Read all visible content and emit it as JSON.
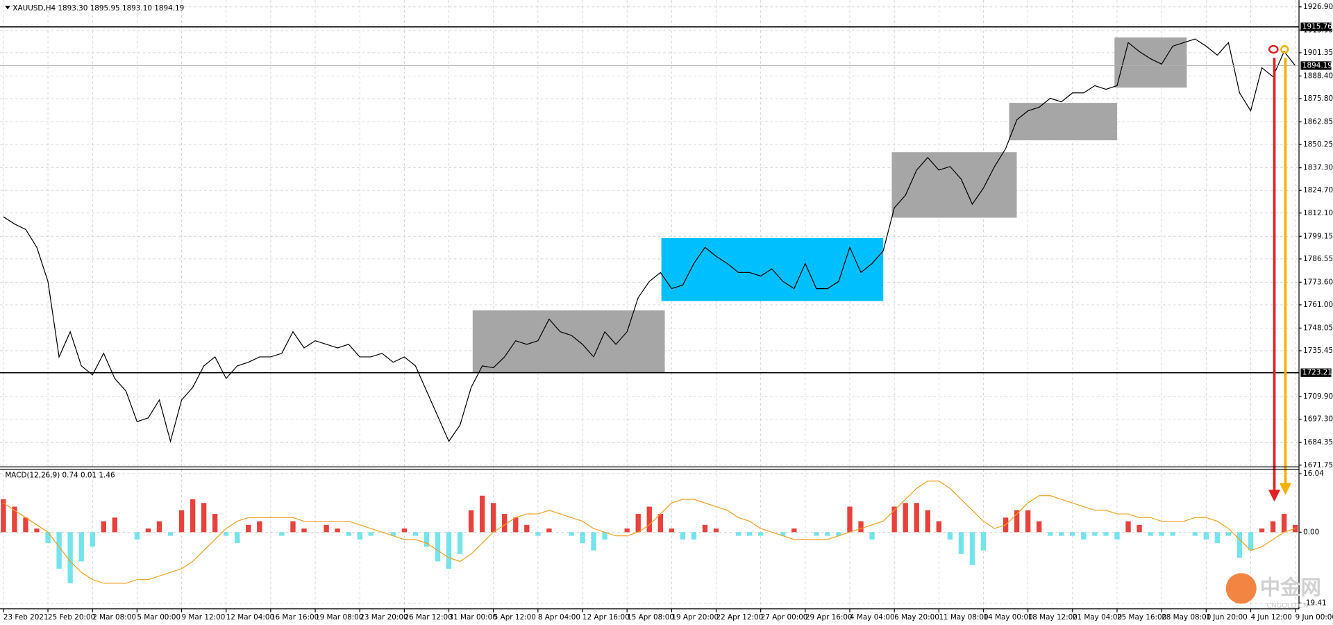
{
  "chart_data": [
    {
      "type": "line",
      "title": "XAUUSD,H4  1893.30 1895.95 1893.10 1894.19",
      "color": "#000000",
      "grid": true,
      "categories": [
        "23 Feb 2021",
        null,
        null,
        null,
        "25 Feb 20:00",
        null,
        null,
        null,
        "2 Mar 08:00",
        null,
        null,
        null,
        "5 Mar 00:00",
        null,
        null,
        null,
        "9 Mar 12:00",
        null,
        null,
        null,
        "12 Mar 04:00",
        null,
        null,
        null,
        "16 Mar 16:00",
        null,
        null,
        null,
        "19 Mar 08:00",
        null,
        null,
        null,
        "23 Mar 20:00",
        null,
        null,
        null,
        "26 Mar 12:00",
        null,
        null,
        null,
        "31 Mar 00:00",
        null,
        null,
        null,
        "5 Apr 12:00",
        null,
        null,
        null,
        "8 Apr 04:00",
        null,
        null,
        null,
        "12 Apr 16:00",
        null,
        null,
        null,
        "15 Apr 08:00",
        null,
        null,
        null,
        "19 Apr 20:00",
        null,
        null,
        null,
        "22 Apr 12:00",
        null,
        null,
        null,
        "27 Apr 00:00",
        null,
        null,
        null,
        "29 Apr 16:00",
        null,
        null,
        null,
        "4 May 04:00",
        null,
        null,
        null,
        "6 May 20:00",
        null,
        null,
        null,
        "11 May 08:00",
        null,
        null,
        null,
        "14 May 00:00",
        null,
        null,
        null,
        "18 May 12:00",
        null,
        null,
        null,
        "21 May 04:00",
        null,
        null,
        null,
        "25 May 16:00",
        null,
        null,
        null,
        "28 May 08:00",
        null,
        null,
        null,
        "1 Jun 20:00",
        null,
        null,
        null,
        "4 Jun 12:00",
        null,
        null,
        null,
        "9 Jun 00:00"
      ],
      "values": [
        1810,
        1806,
        1803,
        1793,
        1774,
        1732,
        1746,
        1727,
        1722,
        1734,
        1720,
        1713,
        1696,
        1698,
        1708,
        1685,
        1708,
        1715,
        1727,
        1732,
        1720,
        1727,
        1729,
        1732,
        1732,
        1734,
        1746,
        1737,
        1741,
        1739,
        1737,
        1739,
        1732,
        1732,
        1734,
        1729,
        1732,
        1727,
        1713,
        1699,
        1685,
        1694,
        1715,
        1727,
        1726,
        1732,
        1741,
        1739,
        1741,
        1753,
        1746,
        1744,
        1739,
        1732,
        1746,
        1739,
        1746,
        1765,
        1774,
        1779,
        1770,
        1772,
        1784,
        1793,
        1788,
        1784,
        1779,
        1779,
        1777,
        1781,
        1774,
        1770,
        1784,
        1770,
        1770,
        1774,
        1793,
        1779,
        1784,
        1791,
        1815,
        1822,
        1836,
        1843,
        1836,
        1838,
        1831,
        1817,
        1826,
        1838,
        1848,
        1864,
        1869,
        1871,
        1876,
        1874,
        1879,
        1879,
        1883,
        1881,
        1883,
        1907,
        1902,
        1898,
        1895,
        1905,
        1907,
        1909,
        1905,
        1900,
        1907,
        1879,
        1869,
        1893,
        1888,
        1902,
        1894.19
      ],
      "ylim": [
        1670.8,
        1930.7
      ],
      "yticks": [
        {
          "value": 1926.9,
          "label": "1926.90"
        },
        {
          "value": 1913.95,
          "label": "1913.95"
        },
        {
          "value": 1901.35,
          "label": "1901.35"
        },
        {
          "value": 1888.4,
          "label": "1888.40"
        },
        {
          "value": 1875.8,
          "label": "1875.80"
        },
        {
          "value": 1862.85,
          "label": "1862.85"
        },
        {
          "value": 1850.25,
          "label": "1850.25"
        },
        {
          "value": 1837.3,
          "label": "1837.30"
        },
        {
          "value": 1824.7,
          "label": "1824.70"
        },
        {
          "value": 1812.1,
          "label": "1812.10"
        },
        {
          "value": 1799.15,
          "label": "1799.15"
        },
        {
          "value": 1786.55,
          "label": "1786.55"
        },
        {
          "value": 1773.6,
          "label": "1773.60"
        },
        {
          "value": 1761,
          "label": "1761.00"
        },
        {
          "value": 1748.05,
          "label": "1748.05"
        },
        {
          "value": 1735.45,
          "label": "1735.45"
        },
        {
          "value": 1709.9,
          "label": "1709.90"
        },
        {
          "value": 1697.3,
          "label": "1697.30"
        },
        {
          "value": 1684.35,
          "label": "1684.35"
        },
        {
          "value": 1671.75,
          "label": "1671.75"
        }
      ],
      "levels": [
        1915.76,
        1723.21
      ],
      "current_price": 1894.19
    },
    {
      "type": "bar",
      "title": "MACD(12,26,9) 0.74 0.01 1.46",
      "positive_color": "#e8413c",
      "negative_color": "#74e4ec",
      "values": [
        9,
        7,
        4,
        1,
        -3,
        -10,
        -14,
        -8,
        -4,
        3,
        4,
        0,
        -2,
        1,
        3,
        -1,
        6,
        9,
        8,
        5,
        -1,
        -3,
        2,
        3,
        0,
        -1,
        3,
        1,
        0,
        2,
        1,
        -1,
        -2,
        -1,
        0,
        -1,
        1,
        -1,
        -4,
        -8,
        -10,
        -6,
        6,
        10,
        8,
        5,
        4,
        2,
        -1,
        1,
        0,
        -1,
        -3,
        -5,
        -2,
        0,
        1,
        5,
        7,
        5,
        1,
        -2,
        -2,
        2,
        1,
        0,
        -1,
        -1,
        -1,
        0,
        -1,
        1,
        0,
        -1,
        -1,
        -1,
        7,
        3,
        -2,
        0,
        7,
        8,
        8,
        6,
        3,
        -2,
        -6,
        -9,
        -5,
        0,
        4,
        6,
        6,
        3,
        -1,
        -1,
        -1,
        -2,
        -1,
        -1,
        -2,
        3,
        2,
        -1,
        -1,
        -1,
        0,
        -1,
        -2,
        -3,
        -1,
        -7,
        -5,
        1,
        3,
        5,
        2
      ],
      "signal": {
        "color": "#f0a020",
        "values": [
          8,
          6,
          4,
          2,
          0,
          -4,
          -8,
          -11,
          -13,
          -14,
          -14,
          -14,
          -13,
          -13,
          -12,
          -11,
          -10,
          -8,
          -5,
          -2,
          1,
          3,
          4,
          4,
          4,
          4,
          4,
          3,
          3,
          3,
          3,
          3,
          2,
          1,
          0,
          -1,
          -2,
          -2,
          -3,
          -5,
          -7,
          -8,
          -6,
          -3,
          0,
          2,
          4,
          5,
          5,
          6,
          5,
          4,
          3,
          1,
          0,
          -1,
          -1,
          0,
          2,
          5,
          8,
          9,
          9,
          8,
          7,
          6,
          4,
          3,
          1,
          0,
          -1,
          -2,
          -2,
          -2,
          -2,
          -1,
          0,
          1,
          2,
          3,
          6,
          9,
          12,
          14,
          14,
          12,
          9,
          6,
          3,
          1,
          2,
          5,
          8,
          10,
          10,
          9,
          8,
          7,
          6,
          6,
          5,
          5,
          4,
          4,
          3,
          3,
          3,
          4,
          4,
          3,
          1,
          -2,
          -5,
          -4,
          -2,
          0,
          1
        ]
      },
      "ylim": [
        -21.0,
        17.2
      ],
      "yticks": [
        {
          "value": 16.04,
          "label": "16.04"
        },
        {
          "value": 0,
          "label": "0.00"
        },
        {
          "value": -19.41,
          "label": "-19.41"
        }
      ]
    }
  ],
  "watermark": {
    "text": "中金网",
    "sub": "CNGOLD.CN"
  }
}
